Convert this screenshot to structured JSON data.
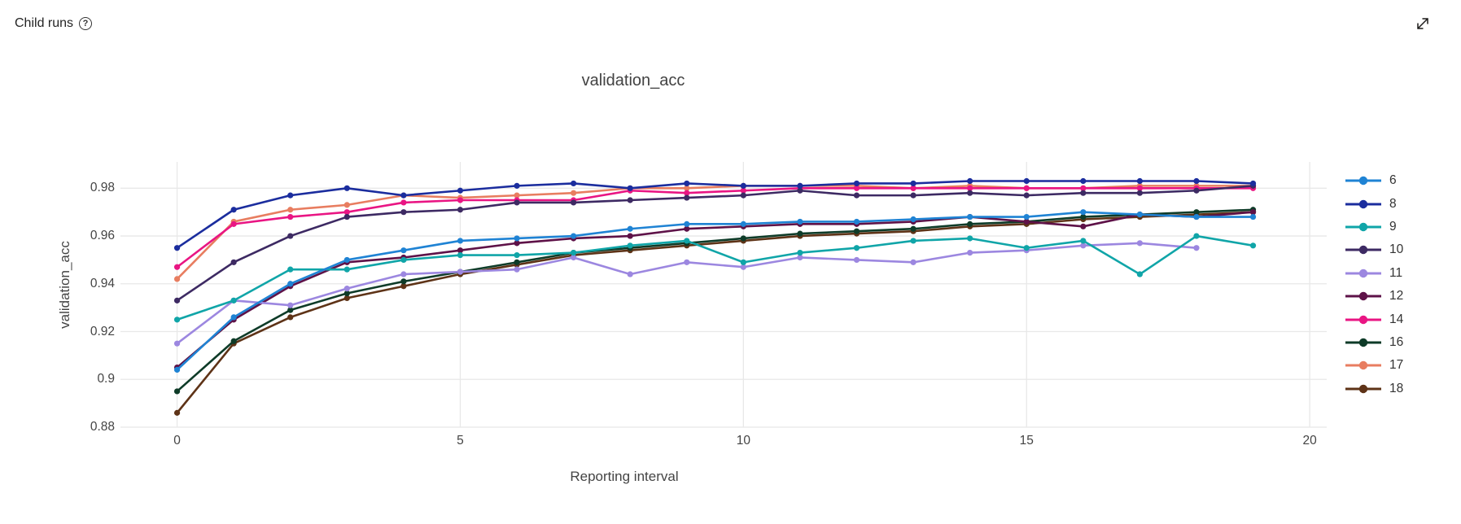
{
  "header": {
    "title": "Child runs"
  },
  "icons": {
    "help_glyph": "?",
    "expand": "diagonal-resize-arrows"
  },
  "colors": {
    "grid": "#e8e8e8",
    "tick_text": "#444444",
    "title_text": "#424242",
    "header_text": "#242424",
    "icon": "#1b1a19",
    "legend_text": "#333333"
  },
  "chart_data": {
    "type": "line",
    "title": "validation_acc",
    "xlabel": "Reporting interval",
    "ylabel": "validation_acc",
    "x_tick_labels": [
      "0",
      "5",
      "10",
      "15",
      "20"
    ],
    "x_tick_values": [
      0,
      5,
      10,
      15,
      20
    ],
    "y_tick_labels": [
      "0.88",
      "0.9",
      "0.92",
      "0.94",
      "0.96",
      "0.98"
    ],
    "y_tick_values": [
      0.88,
      0.9,
      0.92,
      0.94,
      0.96,
      0.98
    ],
    "xlim": [
      -1.0,
      20.3
    ],
    "ylim": [
      0.88,
      0.991
    ],
    "grid": true,
    "legend_position": "right",
    "x_start": 0,
    "series": [
      {
        "name": "6",
        "color": "#1f83d4",
        "values": [
          0.904,
          0.926,
          0.94,
          0.95,
          0.954,
          0.958,
          0.959,
          0.96,
          0.963,
          0.965,
          0.965,
          0.966,
          0.966,
          0.967,
          0.968,
          0.968,
          0.97,
          0.969,
          0.968,
          0.968
        ]
      },
      {
        "name": "8",
        "color": "#1b2d9e",
        "values": [
          0.955,
          0.971,
          0.977,
          0.98,
          0.977,
          0.979,
          0.981,
          0.982,
          0.98,
          0.982,
          0.981,
          0.981,
          0.982,
          0.982,
          0.983,
          0.983,
          0.983,
          0.983,
          0.983,
          0.982
        ]
      },
      {
        "name": "9",
        "color": "#10a5a8",
        "values": [
          0.925,
          0.933,
          0.946,
          0.946,
          0.95,
          0.952,
          0.952,
          0.953,
          0.956,
          0.958,
          0.949,
          0.953,
          0.955,
          0.958,
          0.959,
          0.955,
          0.958,
          0.944,
          0.96,
          0.956
        ]
      },
      {
        "name": "10",
        "color": "#3d2a63",
        "values": [
          0.933,
          0.949,
          0.96,
          0.968,
          0.97,
          0.971,
          0.974,
          0.974,
          0.975,
          0.976,
          0.977,
          0.979,
          0.977,
          0.977,
          0.978,
          0.977,
          0.978,
          0.978,
          0.979,
          0.981
        ]
      },
      {
        "name": "11",
        "color": "#9c87e0",
        "values": [
          0.915,
          0.933,
          0.931,
          0.938,
          0.944,
          0.945,
          0.946,
          0.951,
          0.944,
          0.949,
          0.947,
          0.951,
          0.95,
          0.949,
          0.953,
          0.954,
          0.956,
          0.957,
          0.955
        ]
      },
      {
        "name": "12",
        "color": "#5e1248",
        "values": [
          0.905,
          0.925,
          0.939,
          0.949,
          0.951,
          0.954,
          0.957,
          0.959,
          0.96,
          0.963,
          0.964,
          0.965,
          0.965,
          0.966,
          0.968,
          0.966,
          0.964,
          0.969,
          0.968,
          0.97
        ]
      },
      {
        "name": "14",
        "color": "#e91583",
        "values": [
          0.947,
          0.965,
          0.968,
          0.97,
          0.974,
          0.975,
          0.975,
          0.975,
          0.979,
          0.978,
          0.979,
          0.98,
          0.98,
          0.98,
          0.98,
          0.98,
          0.98,
          0.98,
          0.98,
          0.98
        ]
      },
      {
        "name": "16",
        "color": "#0e3b28",
        "values": [
          0.895,
          0.916,
          0.929,
          0.936,
          0.941,
          0.945,
          0.949,
          0.953,
          0.955,
          0.957,
          0.959,
          0.961,
          0.962,
          0.963,
          0.965,
          0.966,
          0.968,
          0.969,
          0.97,
          0.971
        ]
      },
      {
        "name": "17",
        "color": "#e87d60",
        "values": [
          0.942,
          0.966,
          0.971,
          0.973,
          0.977,
          0.976,
          0.977,
          0.978,
          0.98,
          0.98,
          0.981,
          0.981,
          0.981,
          0.98,
          0.981,
          0.98,
          0.98,
          0.981,
          0.981,
          0.981
        ]
      },
      {
        "name": "18",
        "color": "#5e3317",
        "values": [
          0.886,
          0.915,
          0.926,
          0.934,
          0.939,
          0.944,
          0.948,
          0.952,
          0.954,
          0.956,
          0.958,
          0.96,
          0.961,
          0.962,
          0.964,
          0.965,
          0.967,
          0.968,
          0.969,
          0.97
        ]
      }
    ]
  }
}
